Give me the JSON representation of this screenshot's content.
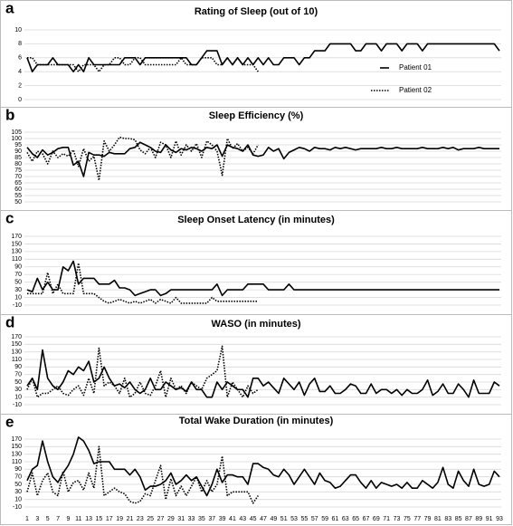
{
  "chart_data": [
    {
      "type": "line",
      "label": "a",
      "title": "Rating of Sleep (out of 10)",
      "ylim": [
        0,
        10
      ],
      "yticks": [
        0,
        2,
        4,
        6,
        8,
        10
      ],
      "grid": true,
      "legend": "right",
      "series": [
        {
          "name": "Patient 01",
          "color": "#000000",
          "dash": "solid",
          "values": [
            6,
            4,
            5,
            5,
            5,
            6,
            5,
            5,
            5,
            4,
            5,
            4,
            6,
            5,
            5,
            5,
            5,
            5,
            5,
            6,
            6,
            6,
            5,
            6,
            6,
            6,
            6,
            6,
            6,
            6,
            6,
            6,
            5,
            5,
            6,
            7,
            7,
            7,
            5,
            6,
            5,
            6,
            5,
            6,
            5,
            6,
            5,
            6,
            5,
            5,
            6,
            6,
            6,
            5,
            6,
            6,
            7,
            7,
            7,
            8,
            8,
            8,
            8,
            8,
            7,
            7,
            8,
            8,
            8,
            7,
            8,
            8,
            8,
            7,
            8,
            8,
            8,
            7,
            8,
            8,
            8,
            8,
            8,
            8,
            8,
            8,
            8,
            8,
            8,
            8,
            8,
            8,
            7
          ]
        },
        {
          "name": "Patient 02",
          "color": "#000000",
          "dash": "dotted",
          "values": [
            6,
            6,
            5,
            5,
            5,
            5,
            5,
            5,
            5,
            5,
            4,
            5,
            5,
            5,
            4,
            5,
            5,
            6,
            6,
            5,
            5,
            6,
            6,
            5,
            5,
            5,
            5,
            5,
            5,
            5,
            6,
            5,
            5,
            5,
            6,
            6,
            6,
            5,
            5,
            6,
            5,
            6,
            5,
            5,
            5,
            4,
            null,
            null,
            null,
            null,
            null,
            null,
            null,
            null,
            null,
            null,
            null,
            null,
            null,
            null,
            null,
            null,
            null,
            null,
            null,
            null,
            null,
            null,
            null,
            null,
            null,
            null,
            null,
            null,
            null,
            null,
            null,
            null,
            null,
            null,
            null,
            null,
            null,
            null,
            null,
            null,
            null,
            null,
            null,
            null,
            null,
            null,
            null
          ]
        }
      ]
    },
    {
      "type": "line",
      "label": "b",
      "title": "Sleep Efficiency (%)",
      "ylim": [
        50,
        105
      ],
      "yticks": [
        50,
        55,
        60,
        65,
        70,
        75,
        80,
        85,
        90,
        95,
        100,
        105
      ],
      "grid": true,
      "series": [
        {
          "color": "#000000",
          "dash": "solid",
          "values": [
            93,
            88,
            85,
            91,
            87,
            89,
            92,
            93,
            93,
            79,
            82,
            70,
            89,
            87,
            87,
            86,
            89,
            88,
            88,
            88,
            92,
            93,
            97,
            95,
            93,
            90,
            89,
            95,
            91,
            89,
            92,
            91,
            93,
            92,
            90,
            93,
            92,
            95,
            86,
            95,
            93,
            92,
            90,
            95,
            87,
            86,
            87,
            93,
            90,
            92,
            84,
            89,
            91,
            93,
            92,
            90,
            93,
            92,
            92,
            91,
            93,
            92,
            93,
            92,
            91,
            92,
            92,
            92,
            92,
            93,
            92,
            92,
            93,
            92,
            92,
            92,
            92,
            93,
            92,
            92,
            92,
            93,
            92,
            93,
            91,
            92,
            92,
            92,
            93,
            92,
            92,
            92,
            92
          ]
        },
        {
          "color": "#000000",
          "dash": "dotted",
          "values": [
            89,
            82,
            90,
            88,
            80,
            90,
            85,
            88,
            86,
            91,
            78,
            92,
            82,
            86,
            67,
            98,
            90,
            95,
            101,
            100,
            100,
            99,
            91,
            88,
            93,
            85,
            97,
            95,
            85,
            98,
            87,
            95,
            90,
            96,
            85,
            98,
            95,
            90,
            71,
            100,
            92,
            96,
            90,
            93,
            88,
            95,
            null,
            null,
            null,
            null,
            null,
            null,
            null,
            null,
            null,
            null,
            null,
            null,
            null,
            null,
            null,
            null,
            null,
            null,
            null,
            null,
            null,
            null,
            null,
            null,
            null,
            null,
            null,
            null,
            null,
            null,
            null,
            null,
            null,
            null,
            null,
            null,
            null,
            null,
            null,
            null,
            null,
            null,
            null,
            null,
            null,
            null,
            null
          ]
        }
      ]
    },
    {
      "type": "line",
      "label": "c",
      "title": "Sleep Onset Latency (in minutes)",
      "ylim": [
        -10,
        170
      ],
      "yticks": [
        -10,
        10,
        30,
        50,
        70,
        90,
        110,
        130,
        150,
        170
      ],
      "grid": true,
      "series": [
        {
          "color": "#000000",
          "dash": "solid",
          "values": [
            30,
            25,
            60,
            30,
            50,
            30,
            30,
            90,
            80,
            105,
            45,
            60,
            60,
            60,
            45,
            45,
            45,
            55,
            35,
            35,
            30,
            15,
            20,
            25,
            30,
            30,
            15,
            20,
            30,
            30,
            30,
            30,
            30,
            30,
            30,
            30,
            30,
            45,
            15,
            30,
            30,
            30,
            30,
            45,
            45,
            45,
            45,
            30,
            30,
            30,
            30,
            45,
            30,
            30,
            30,
            30,
            30,
            30,
            30,
            30,
            30,
            30,
            30,
            30,
            30,
            30,
            30,
            30,
            30,
            30,
            30,
            30,
            30,
            30,
            30,
            30,
            30,
            30,
            30,
            30,
            30,
            30,
            30,
            30,
            30,
            30,
            30,
            30,
            30,
            30,
            30,
            30,
            30
          ]
        },
        {
          "color": "#000000",
          "dash": "dotted",
          "values": [
            20,
            20,
            20,
            20,
            75,
            20,
            45,
            20,
            20,
            20,
            100,
            20,
            20,
            20,
            10,
            0,
            -5,
            0,
            5,
            0,
            -5,
            0,
            -5,
            0,
            5,
            -5,
            5,
            0,
            -5,
            10,
            -5,
            -5,
            -5,
            -5,
            -5,
            -5,
            10,
            0,
            0,
            0,
            0,
            0,
            0,
            0,
            0,
            0,
            null,
            null,
            null,
            null,
            null,
            null,
            null,
            null,
            null,
            null,
            null,
            null,
            null,
            null,
            null,
            null,
            null,
            null,
            null,
            null,
            null,
            null,
            null,
            null,
            null,
            null,
            null,
            null,
            null,
            null,
            null,
            null,
            null,
            null,
            null,
            null,
            null,
            null,
            null,
            null,
            null,
            null,
            null,
            null,
            null,
            null,
            null
          ]
        }
      ]
    },
    {
      "type": "line",
      "label": "d",
      "title": "WASO (in minutes)",
      "ylim": [
        -10,
        170
      ],
      "yticks": [
        -10,
        10,
        30,
        50,
        70,
        90,
        110,
        130,
        150,
        170
      ],
      "grid": true,
      "series": [
        {
          "color": "#000000",
          "dash": "solid",
          "values": [
            40,
            60,
            30,
            135,
            60,
            40,
            30,
            50,
            80,
            70,
            90,
            80,
            105,
            50,
            60,
            90,
            60,
            40,
            45,
            35,
            50,
            30,
            20,
            30,
            60,
            30,
            30,
            50,
            40,
            30,
            35,
            25,
            50,
            30,
            30,
            10,
            10,
            50,
            30,
            50,
            40,
            30,
            30,
            10,
            60,
            60,
            40,
            50,
            35,
            20,
            60,
            45,
            30,
            50,
            15,
            45,
            60,
            25,
            25,
            40,
            20,
            20,
            30,
            45,
            40,
            20,
            20,
            45,
            20,
            30,
            30,
            20,
            30,
            15,
            30,
            20,
            20,
            30,
            55,
            15,
            25,
            45,
            20,
            20,
            45,
            30,
            10,
            55,
            20,
            20,
            20,
            50,
            40
          ]
        },
        {
          "color": "#000000",
          "dash": "dotted",
          "values": [
            30,
            60,
            10,
            20,
            20,
            30,
            40,
            20,
            15,
            30,
            40,
            15,
            60,
            20,
            140,
            40,
            50,
            40,
            20,
            60,
            10,
            20,
            50,
            20,
            15,
            40,
            80,
            10,
            60,
            30,
            40,
            20,
            50,
            40,
            30,
            60,
            70,
            80,
            145,
            10,
            50,
            30,
            10,
            40,
            20,
            30,
            null,
            null,
            null,
            null,
            null,
            null,
            null,
            null,
            null,
            null,
            null,
            null,
            null,
            null,
            null,
            null,
            null,
            null,
            null,
            null,
            null,
            null,
            null,
            null,
            null,
            null,
            null,
            null,
            null,
            null,
            null,
            null,
            null,
            null,
            null,
            null,
            null,
            null,
            null,
            null,
            null,
            null,
            null,
            null,
            null,
            null,
            null
          ]
        }
      ]
    },
    {
      "type": "line",
      "label": "e",
      "title": "Total Wake Duration (in minutes)",
      "ylim": [
        -10,
        170
      ],
      "yticks": [
        -10,
        10,
        30,
        50,
        70,
        90,
        110,
        130,
        150,
        170
      ],
      "grid": true,
      "categories": [
        1,
        null,
        3,
        null,
        5,
        null,
        7,
        null,
        9,
        null,
        11,
        null,
        13,
        null,
        15,
        null,
        17,
        null,
        19,
        null,
        21,
        null,
        23,
        null,
        25,
        null,
        27,
        null,
        29,
        null,
        31,
        null,
        33,
        null,
        35,
        null,
        37,
        null,
        39,
        null,
        41,
        null,
        43,
        null,
        45,
        null,
        47,
        null,
        49,
        null,
        51,
        null,
        53,
        null,
        55,
        null,
        57,
        null,
        59,
        null,
        61,
        null,
        63,
        null,
        65,
        null,
        67,
        null,
        69,
        null,
        71,
        null,
        73,
        null,
        75,
        null,
        77,
        null,
        79,
        null,
        81,
        null,
        83,
        null,
        85,
        null,
        87,
        null,
        89,
        null,
        91,
        null,
        93
      ],
      "series": [
        {
          "color": "#000000",
          "dash": "solid",
          "values": [
            60,
            90,
            100,
            165,
            110,
            70,
            55,
            80,
            100,
            130,
            175,
            165,
            140,
            105,
            110,
            110,
            110,
            90,
            90,
            90,
            75,
            90,
            70,
            35,
            45,
            45,
            50,
            60,
            80,
            50,
            60,
            75,
            60,
            70,
            45,
            20,
            50,
            90,
            55,
            75,
            75,
            70,
            70,
            50,
            105,
            105,
            95,
            90,
            75,
            70,
            90,
            75,
            50,
            70,
            90,
            70,
            50,
            80,
            60,
            55,
            40,
            45,
            60,
            75,
            75,
            55,
            40,
            60,
            40,
            55,
            50,
            45,
            50,
            40,
            55,
            40,
            40,
            60,
            50,
            40,
            55,
            95,
            50,
            40,
            85,
            60,
            45,
            90,
            50,
            45,
            50,
            85,
            70
          ]
        },
        {
          "color": "#000000",
          "dash": "dotted",
          "values": [
            30,
            80,
            20,
            60,
            80,
            30,
            20,
            85,
            30,
            55,
            60,
            35,
            80,
            40,
            150,
            20,
            30,
            40,
            30,
            25,
            5,
            0,
            5,
            25,
            20,
            60,
            100,
            10,
            65,
            20,
            45,
            20,
            45,
            70,
            30,
            60,
            30,
            50,
            125,
            20,
            30,
            30,
            30,
            30,
            0,
            20,
            null,
            null,
            null,
            null,
            null,
            null,
            null,
            null,
            null,
            null,
            null,
            null,
            null,
            null,
            null,
            null,
            null,
            null,
            null,
            null,
            null,
            null,
            null,
            null,
            null,
            null,
            null,
            null,
            null,
            null,
            null,
            null,
            null,
            null,
            null,
            null,
            null,
            null,
            null,
            null,
            null,
            null,
            null,
            null,
            null,
            null,
            null
          ]
        }
      ]
    }
  ]
}
